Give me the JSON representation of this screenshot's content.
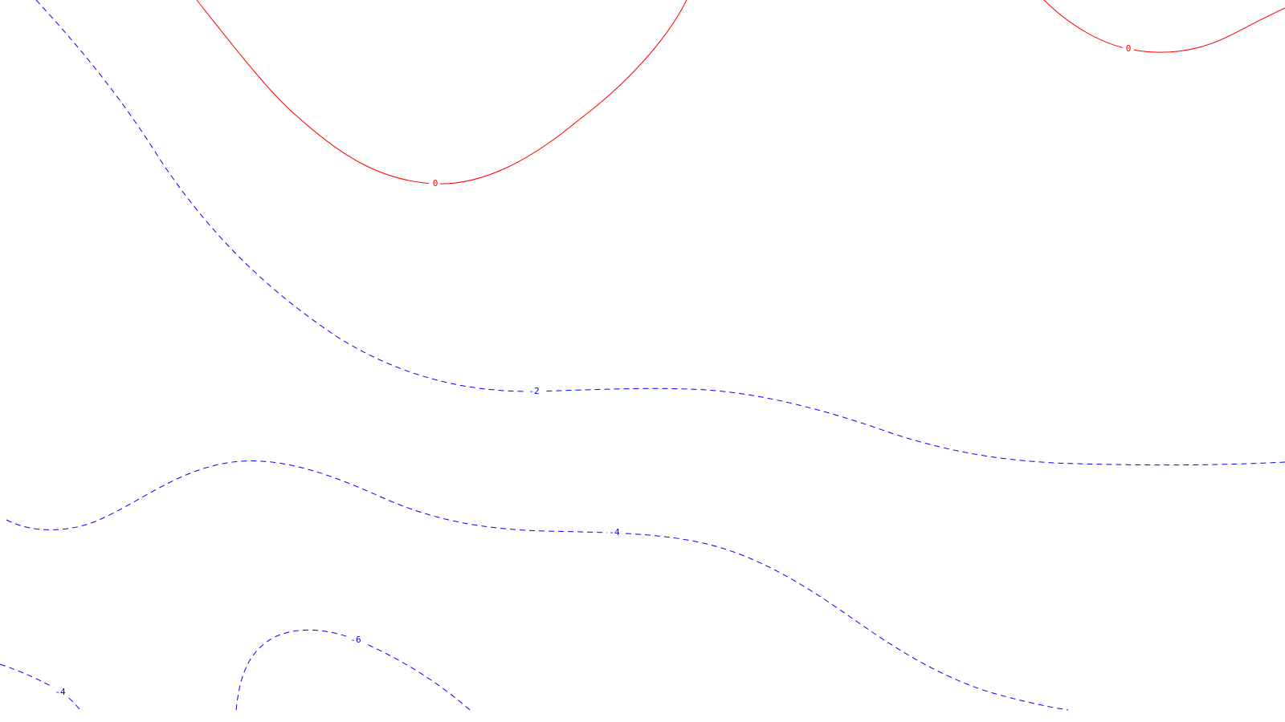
{
  "map": {
    "colors": {
      "solid_line": "#ff0000",
      "dashed_line": "#0000ff",
      "background": "#ffffff"
    },
    "contours": [
      {
        "id": "zero-west",
        "value": "0",
        "style": "solid"
      },
      {
        "id": "zero-east",
        "value": "0",
        "style": "solid"
      },
      {
        "id": "minus-two",
        "value": "-2",
        "style": "dashed"
      },
      {
        "id": "minus-four-upper",
        "value": "-4",
        "style": "dashed"
      },
      {
        "id": "minus-six",
        "value": "-6",
        "style": "dashed"
      },
      {
        "id": "minus-four-lower",
        "value": "-4",
        "style": "dashed"
      }
    ]
  }
}
